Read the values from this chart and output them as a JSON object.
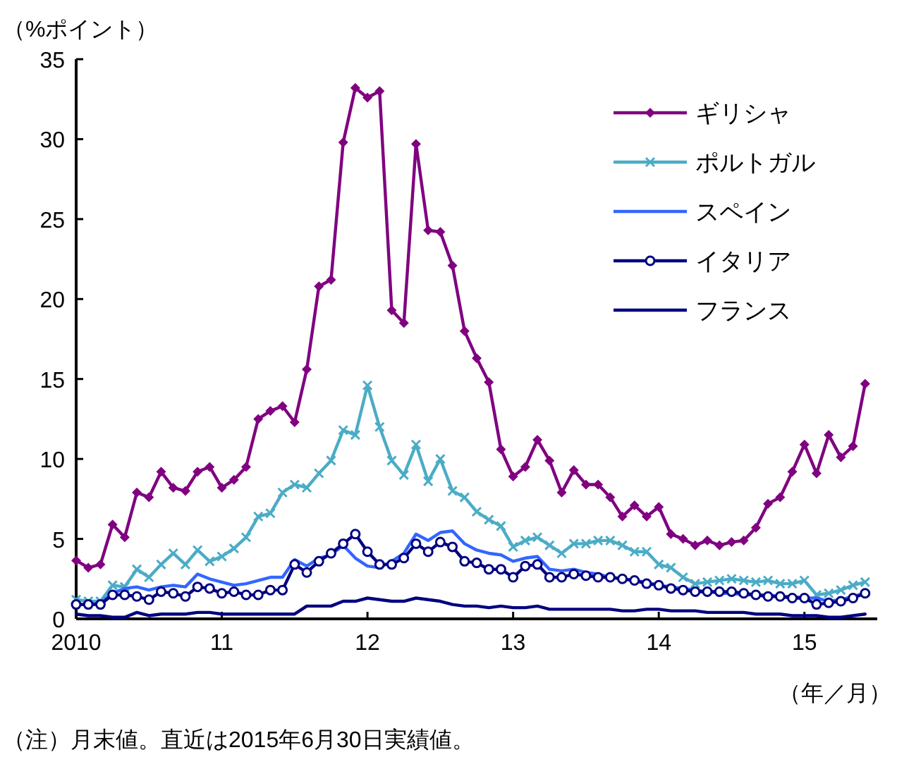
{
  "chart_data": {
    "type": "line",
    "ylabel": "（%ポイント）",
    "xlabel": "（年／月）",
    "annotations": [
      "（注）月末値。直近は2015年6月30日実績値。"
    ],
    "x": [
      "2010-01",
      "2010-02",
      "2010-03",
      "2010-04",
      "2010-05",
      "2010-06",
      "2010-07",
      "2010-08",
      "2010-09",
      "2010-10",
      "2010-11",
      "2010-12",
      "2011-01",
      "2011-02",
      "2011-03",
      "2011-04",
      "2011-05",
      "2011-06",
      "2011-07",
      "2011-08",
      "2011-09",
      "2011-10",
      "2011-11",
      "2011-12",
      "2012-01",
      "2012-02",
      "2012-03",
      "2012-04",
      "2012-05",
      "2012-06",
      "2012-07",
      "2012-08",
      "2012-09",
      "2012-10",
      "2012-11",
      "2012-12",
      "2013-01",
      "2013-02",
      "2013-03",
      "2013-04",
      "2013-05",
      "2013-06",
      "2013-07",
      "2013-08",
      "2013-09",
      "2013-10",
      "2013-11",
      "2013-12",
      "2014-01",
      "2014-02",
      "2014-03",
      "2014-04",
      "2014-05",
      "2014-06",
      "2014-07",
      "2014-08",
      "2014-09",
      "2014-10",
      "2014-11",
      "2014-12",
      "2015-01",
      "2015-02",
      "2015-03",
      "2015-04",
      "2015-05",
      "2015-06"
    ],
    "xlim": [
      "2010-01",
      "2015-07"
    ],
    "xticks": [
      {
        "value": "2010-01",
        "label": "2010"
      },
      {
        "value": "2011-01",
        "label": "11"
      },
      {
        "value": "2012-01",
        "label": "12"
      },
      {
        "value": "2013-01",
        "label": "13"
      },
      {
        "value": "2014-01",
        "label": "14"
      },
      {
        "value": "2015-01",
        "label": "15"
      }
    ],
    "ylim": [
      0,
      35
    ],
    "yticks": [
      0,
      5,
      10,
      15,
      20,
      25,
      30,
      35
    ],
    "grid": false,
    "legend": "top right",
    "series": [
      {
        "name": "ギリシャ",
        "color": "#800080",
        "marker": "diamond",
        "values": [
          3.65,
          3.2,
          3.4,
          5.9,
          5.1,
          7.9,
          7.6,
          9.2,
          8.2,
          8.0,
          9.2,
          9.5,
          8.2,
          8.7,
          9.5,
          12.5,
          13.0,
          13.3,
          12.3,
          15.6,
          20.8,
          21.2,
          29.8,
          33.2,
          32.6,
          33.0,
          19.3,
          18.5,
          29.7,
          24.3,
          24.2,
          22.1,
          18.0,
          16.3,
          14.8,
          10.6,
          8.9,
          9.5,
          11.2,
          9.9,
          7.9,
          9.3,
          8.4,
          8.4,
          7.6,
          6.4,
          7.1,
          6.4,
          7.0,
          5.3,
          5.0,
          4.6,
          4.9,
          4.6,
          4.8,
          4.9,
          5.7,
          7.2,
          7.6,
          9.2,
          10.9,
          9.1,
          11.5,
          10.1,
          10.8,
          14.7
        ]
      },
      {
        "name": "ポルトガル",
        "color": "#4bacc6",
        "marker": "cross",
        "values": [
          1.2,
          1.1,
          1.1,
          2.1,
          2.0,
          3.1,
          2.6,
          3.4,
          4.1,
          3.4,
          4.3,
          3.6,
          3.9,
          4.4,
          5.1,
          6.4,
          6.6,
          7.9,
          8.4,
          8.2,
          9.1,
          9.9,
          11.8,
          11.5,
          14.6,
          12.0,
          9.9,
          9.0,
          10.9,
          8.6,
          10.0,
          8.0,
          7.6,
          6.7,
          6.2,
          5.8,
          4.5,
          4.9,
          5.1,
          4.6,
          4.1,
          4.7,
          4.7,
          4.9,
          4.9,
          4.6,
          4.2,
          4.2,
          3.4,
          3.2,
          2.6,
          2.2,
          2.3,
          2.4,
          2.5,
          2.4,
          2.3,
          2.4,
          2.2,
          2.2,
          2.4,
          1.5,
          1.6,
          1.8,
          2.1,
          2.3
        ]
      },
      {
        "name": "スペイン",
        "color": "#3366ff",
        "marker": "none",
        "values": [
          0.9,
          0.9,
          1.0,
          1.6,
          1.9,
          2.0,
          1.8,
          2.0,
          2.1,
          2.0,
          2.8,
          2.5,
          2.3,
          2.1,
          2.2,
          2.4,
          2.6,
          2.6,
          3.7,
          3.3,
          3.8,
          4.0,
          4.6,
          3.8,
          3.3,
          3.2,
          3.6,
          4.1,
          5.3,
          4.9,
          5.4,
          5.5,
          4.7,
          4.3,
          4.1,
          4.0,
          3.6,
          3.8,
          3.9,
          3.1,
          3.0,
          3.1,
          2.9,
          2.8,
          2.6,
          2.5,
          2.4,
          2.3,
          2.1,
          2.0,
          1.9,
          1.8,
          1.7,
          1.6,
          1.6,
          1.5,
          1.5,
          1.5,
          1.4,
          1.4,
          1.3,
          1.3,
          1.1,
          1.2,
          1.4,
          1.6
        ]
      },
      {
        "name": "イタリア",
        "color": "#000080",
        "marker": "circle",
        "values": [
          0.9,
          0.9,
          0.9,
          1.5,
          1.5,
          1.4,
          1.2,
          1.7,
          1.6,
          1.4,
          2.0,
          1.9,
          1.6,
          1.7,
          1.5,
          1.5,
          1.8,
          1.8,
          3.4,
          2.9,
          3.6,
          4.1,
          4.7,
          5.3,
          4.2,
          3.4,
          3.4,
          3.8,
          4.7,
          4.2,
          4.8,
          4.5,
          3.6,
          3.5,
          3.1,
          3.1,
          2.6,
          3.3,
          3.4,
          2.6,
          2.6,
          2.8,
          2.7,
          2.6,
          2.6,
          2.5,
          2.4,
          2.2,
          2.1,
          1.9,
          1.8,
          1.7,
          1.7,
          1.7,
          1.7,
          1.6,
          1.5,
          1.4,
          1.4,
          1.3,
          1.3,
          0.9,
          1.0,
          1.1,
          1.3,
          1.6
        ]
      },
      {
        "name": "フランス",
        "color": "#000080",
        "marker": "none",
        "values": [
          0.3,
          0.2,
          0.2,
          0.1,
          0.1,
          0.4,
          0.2,
          0.3,
          0.3,
          0.3,
          0.4,
          0.4,
          0.3,
          0.3,
          0.3,
          0.3,
          0.3,
          0.3,
          0.3,
          0.8,
          0.8,
          0.8,
          1.1,
          1.1,
          1.3,
          1.2,
          1.1,
          1.1,
          1.3,
          1.2,
          1.1,
          0.9,
          0.8,
          0.8,
          0.7,
          0.8,
          0.7,
          0.7,
          0.8,
          0.6,
          0.6,
          0.6,
          0.6,
          0.6,
          0.6,
          0.5,
          0.5,
          0.6,
          0.6,
          0.5,
          0.5,
          0.5,
          0.4,
          0.4,
          0.4,
          0.4,
          0.3,
          0.3,
          0.3,
          0.2,
          0.2,
          0.2,
          0.1,
          0.1,
          0.2,
          0.3
        ]
      }
    ]
  }
}
